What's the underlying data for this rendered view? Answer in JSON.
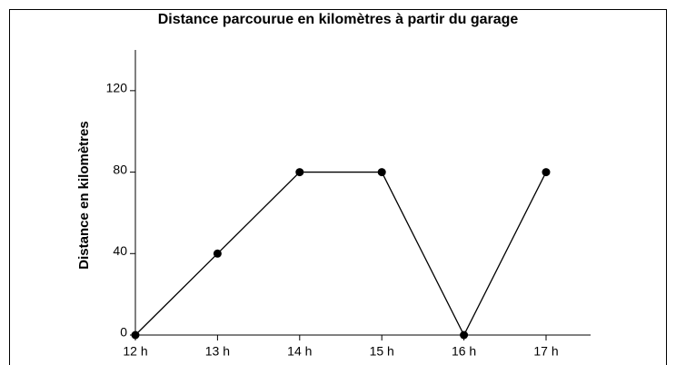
{
  "chart_data": {
    "type": "line",
    "title": "Distance parcourue en kilomètres à partir du garage",
    "y_label": "Distance en kilomètres",
    "categories": [
      "12 h",
      "13 h",
      "14 h",
      "15 h",
      "16 h",
      "17 h"
    ],
    "values": [
      0,
      40,
      80,
      80,
      0,
      80
    ],
    "color": "#000000",
    "ylim": [
      0,
      140
    ],
    "yticks": [
      0,
      40,
      80,
      120
    ]
  }
}
